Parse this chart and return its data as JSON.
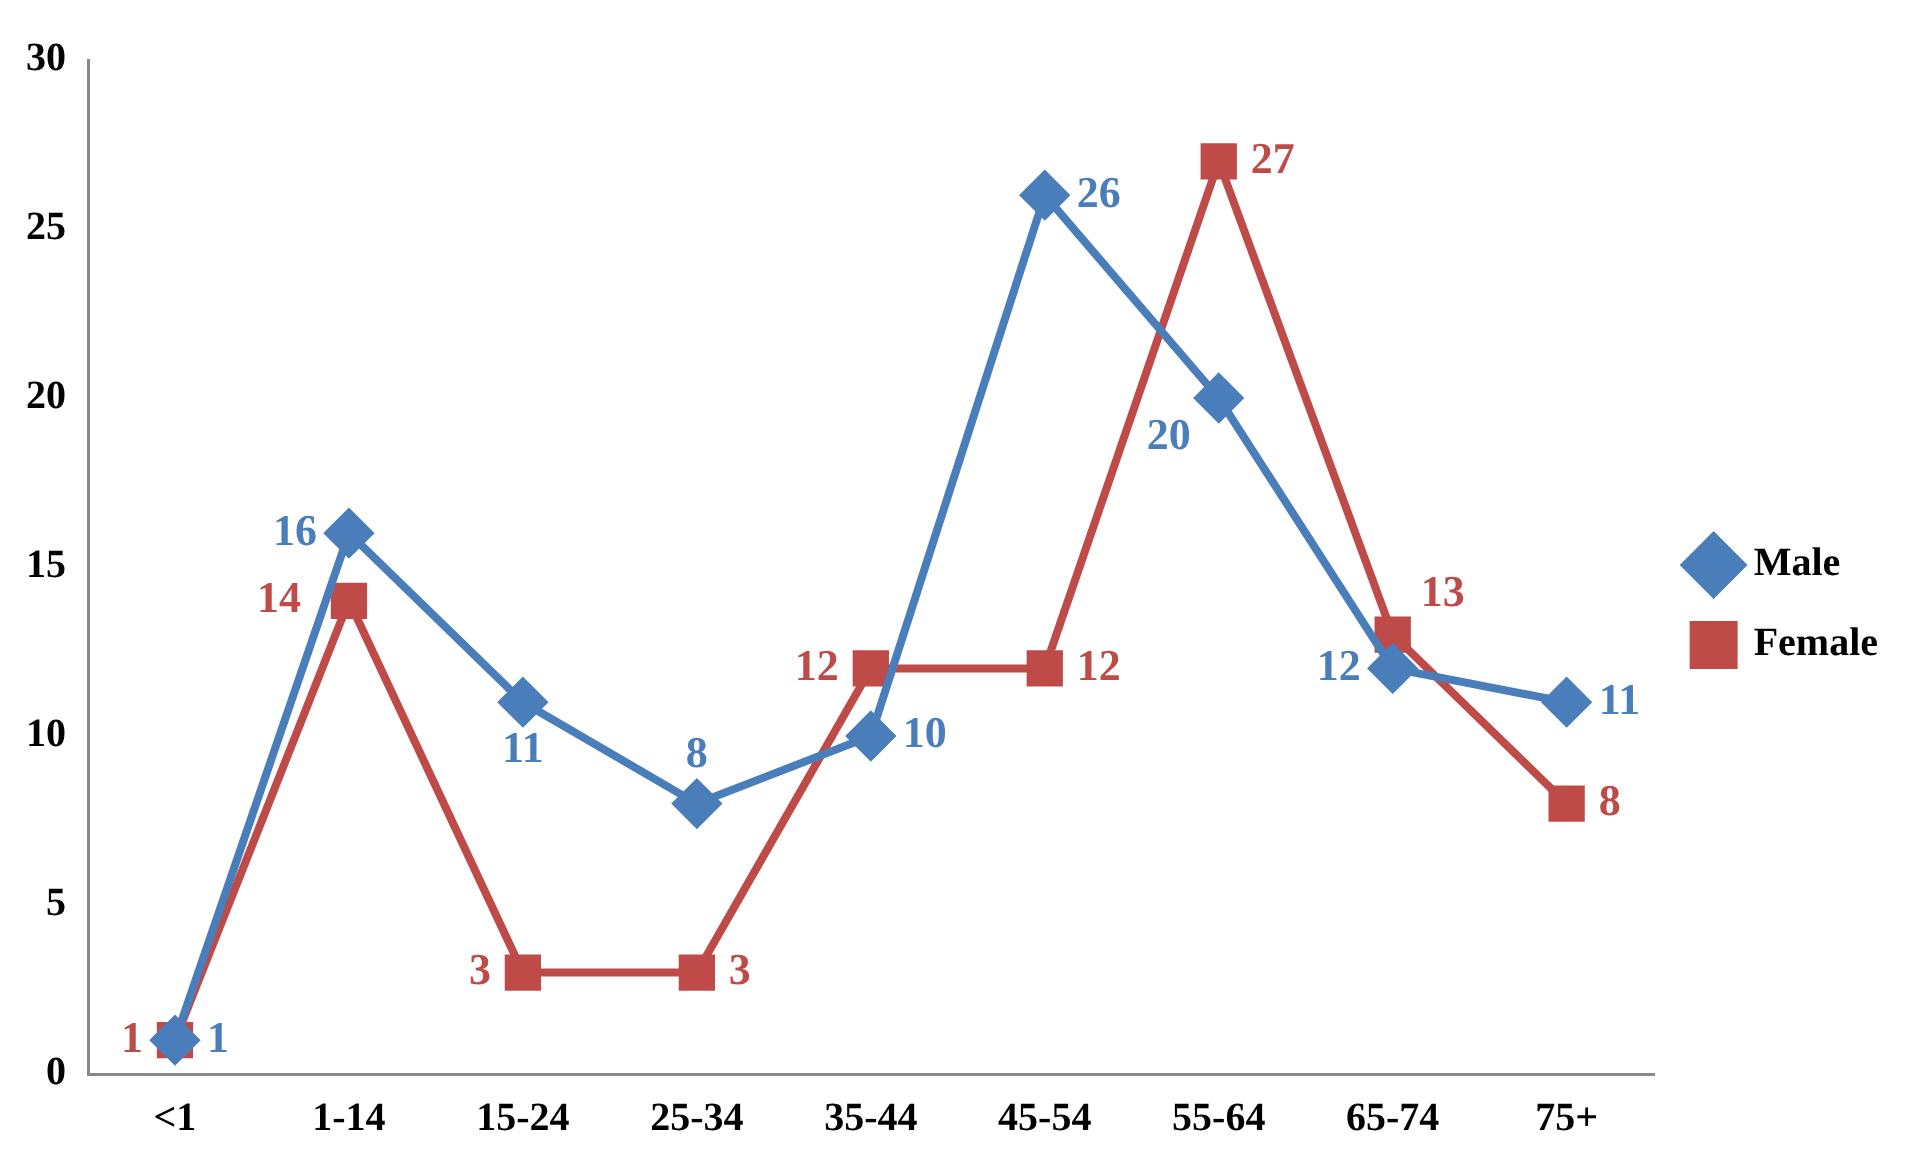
{
  "chart_data": {
    "type": "line",
    "categories": [
      "<1",
      "1-14",
      "15-24",
      "25-34",
      "35-44",
      "45-54",
      "55-64",
      "65-74",
      "75+"
    ],
    "series": [
      {
        "name": "Male",
        "color": "#4a7ebb",
        "marker": "diamond",
        "values": [
          1,
          16,
          11,
          8,
          10,
          26,
          20,
          12,
          11
        ]
      },
      {
        "name": "Female",
        "color": "#be4b48",
        "marker": "square",
        "values": [
          1,
          14,
          3,
          3,
          12,
          12,
          27,
          13,
          8
        ]
      }
    ],
    "ylim": [
      0,
      30
    ],
    "yticks": [
      0,
      5,
      10,
      15,
      20,
      25,
      30
    ],
    "grid": false,
    "legend": "right",
    "data_labels": true,
    "line_style": "solid"
  }
}
